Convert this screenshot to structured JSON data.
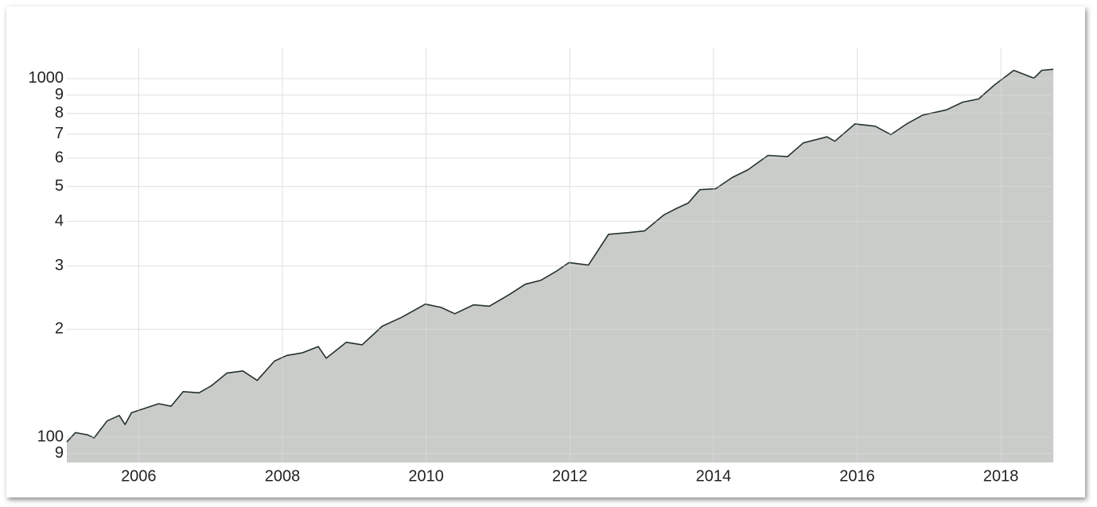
{
  "chart_data": {
    "type": "area",
    "log_scale": true,
    "grid": true,
    "color": "#c5c8c6",
    "line_color": "#24332c",
    "x": [
      2005.0,
      2005.12,
      2005.29,
      2005.38,
      2005.56,
      2005.73,
      2005.81,
      2005.9,
      2006.12,
      2006.28,
      2006.45,
      2006.62,
      2006.84,
      2007.01,
      2007.23,
      2007.45,
      2007.65,
      2007.89,
      2008.06,
      2008.28,
      2008.5,
      2008.61,
      2008.89,
      2009.11,
      2009.39,
      2009.66,
      2009.99,
      2010.21,
      2010.4,
      2010.66,
      2010.88,
      2011.16,
      2011.38,
      2011.6,
      2011.82,
      2011.99,
      2012.26,
      2012.54,
      2012.82,
      2013.04,
      2013.31,
      2013.48,
      2013.65,
      2013.81,
      2014.03,
      2014.26,
      2014.48,
      2014.76,
      2015.03,
      2015.25,
      2015.58,
      2015.69,
      2015.97,
      2016.25,
      2016.47,
      2016.69,
      2016.91,
      2017.24,
      2017.47,
      2017.69,
      2017.91,
      2018.18,
      2018.46,
      2018.57,
      2018.73
    ],
    "values": [
      97,
      103,
      101.5,
      99.5,
      111,
      115,
      108.5,
      117,
      121,
      124,
      122,
      134,
      133,
      139,
      151,
      153,
      144,
      163,
      169,
      172,
      179,
      166,
      184,
      181,
      204,
      216,
      235,
      230,
      221,
      234,
      232,
      250,
      267,
      274,
      291,
      307,
      302,
      368,
      372,
      376,
      417,
      434,
      450,
      490,
      493,
      530,
      557,
      611,
      606,
      662,
      688,
      669,
      748,
      737,
      698,
      748,
      791,
      818,
      860,
      878,
      960,
      1055,
      1003,
      1055,
      1062
    ],
    "xlim": [
      2005.0,
      2018.74
    ],
    "xticks": [
      2006,
      2008,
      2010,
      2012,
      2014,
      2016,
      2018
    ],
    "ylim": [
      85,
      1220
    ],
    "yticks": [
      {
        "value": 90,
        "label": "9"
      },
      100,
      {
        "value": 200,
        "label": "2"
      },
      {
        "value": 300,
        "label": "3"
      },
      {
        "value": 400,
        "label": "4"
      },
      {
        "value": 500,
        "label": "5"
      },
      {
        "value": 600,
        "label": "6"
      },
      {
        "value": 700,
        "label": "7"
      },
      {
        "value": 800,
        "label": "8"
      },
      {
        "value": 900,
        "label": "9"
      },
      1000
    ]
  }
}
